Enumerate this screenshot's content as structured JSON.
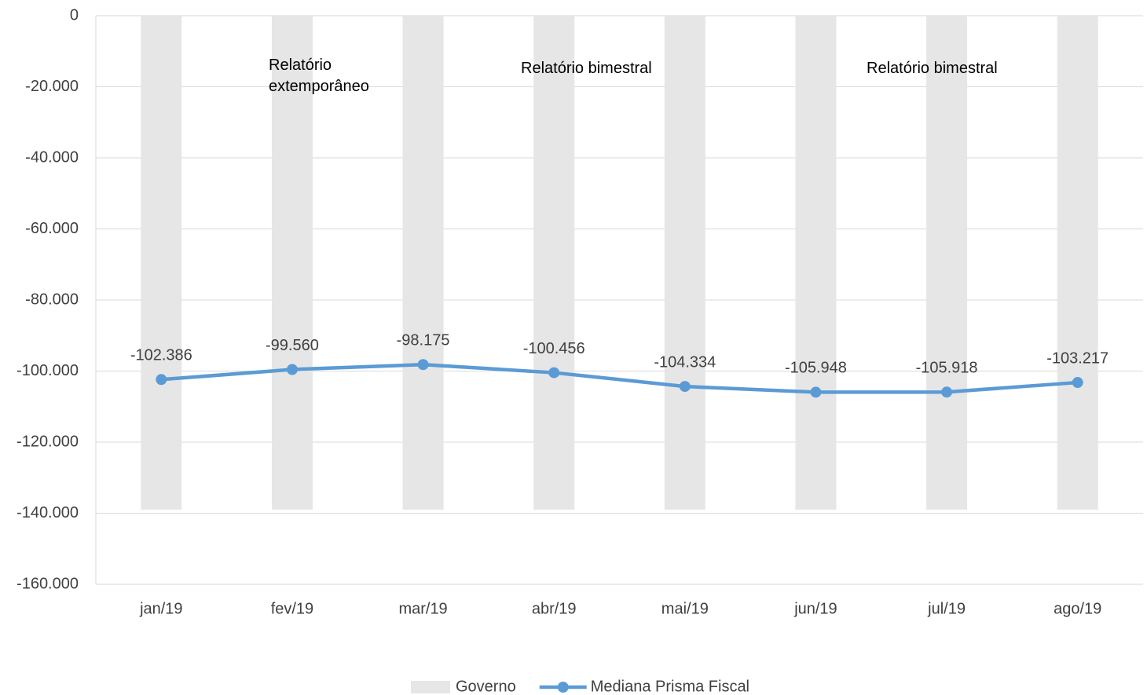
{
  "chart_data": {
    "type": "bar-line",
    "categories": [
      "jan/19",
      "fev/19",
      "mar/19",
      "abr/19",
      "mai/19",
      "jun/19",
      "jul/19",
      "ago/19"
    ],
    "series": [
      {
        "name": "Governo",
        "type": "bar",
        "color": "#e7e6e6",
        "values": [
          -139000,
          -139000,
          -139000,
          -139000,
          -139000,
          -139000,
          -139000,
          -139000
        ]
      },
      {
        "name": "Mediana Prisma Fiscal",
        "type": "line",
        "color": "#5b9bd5",
        "values": [
          -102386,
          -99560,
          -98175,
          -100456,
          -104334,
          -105948,
          -105918,
          -103217
        ],
        "value_labels": [
          "-102.386",
          "-99.560",
          "-98.175",
          "-100.456",
          "-104.334",
          "-105.948",
          "-105.918",
          "-103.217"
        ]
      }
    ],
    "annotations": [
      "Relatório extemporâneo",
      "Relatório bimestral",
      "Relatório bimestral"
    ],
    "ylim": [
      -160000,
      0
    ],
    "yticks": [
      0,
      {
        "value": -20000,
        "label": "-20.000"
      },
      {
        "value": -40000,
        "label": "-40.000"
      },
      {
        "value": -60000,
        "label": "-60.000"
      },
      {
        "value": -80000,
        "label": "-80.000"
      },
      {
        "value": -100000,
        "label": "-100.000"
      },
      {
        "value": -120000,
        "label": "-120.000"
      },
      {
        "value": -140000,
        "label": "-140.000"
      },
      {
        "value": -160000,
        "label": "-160.000"
      }
    ],
    "grid": true,
    "legend": "bottom"
  }
}
